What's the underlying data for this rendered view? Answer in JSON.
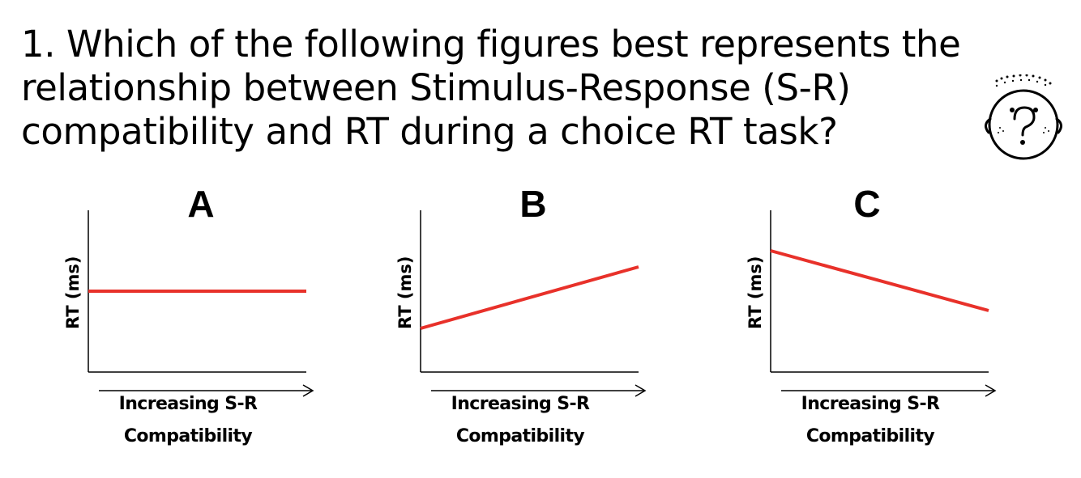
{
  "question": {
    "lines": [
      "1. Which of the following figures best represents the",
      "relationship between Stimulus-Response (S-R)",
      "compatibility and RT during a choice RT task?"
    ]
  },
  "icon": "thinking-face-question-mark-icon",
  "colors": {
    "line": "#e8312a",
    "axis": "#000000"
  },
  "chart_data": [
    {
      "type": "line",
      "title": "A",
      "ylabel": "RT (ms)",
      "xlabel_lines": [
        "Increasing S-R",
        "Compatibility"
      ],
      "series": [
        {
          "x": [
            0,
            1
          ],
          "y": [
            0.5,
            0.5
          ]
        }
      ],
      "xlim": [
        0,
        1
      ],
      "ylim": [
        0,
        1
      ],
      "grid": false
    },
    {
      "type": "line",
      "title": "B",
      "ylabel": "RT (ms)",
      "xlabel_lines": [
        "Increasing S-R",
        "Compatibility"
      ],
      "series": [
        {
          "x": [
            0,
            1
          ],
          "y": [
            0.27,
            0.65
          ]
        }
      ],
      "xlim": [
        0,
        1
      ],
      "ylim": [
        0,
        1
      ],
      "grid": false
    },
    {
      "type": "line",
      "title": "C",
      "ylabel": "RT (ms)",
      "xlabel_lines": [
        "Increasing S-R",
        "Compatibility"
      ],
      "series": [
        {
          "x": [
            0,
            1
          ],
          "y": [
            0.75,
            0.38
          ]
        }
      ],
      "xlim": [
        0,
        1
      ],
      "ylim": [
        0,
        1
      ],
      "grid": false
    }
  ]
}
